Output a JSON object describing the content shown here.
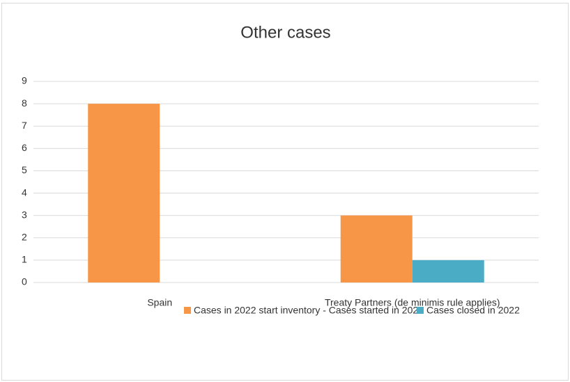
{
  "chart_data": {
    "type": "bar",
    "title": "Other cases",
    "categories": [
      "Spain",
      "Treaty Partners (de minimis rule applies)"
    ],
    "series": [
      {
        "name": "Cases in 2022 start inventory - Cases started in 2022",
        "color": "#f79646",
        "values": [
          8,
          3
        ]
      },
      {
        "name": "Cases closed in 2022",
        "color": "#4bacc6",
        "values": [
          0,
          1
        ]
      }
    ],
    "ylim": [
      0,
      9
    ],
    "yticks": [
      0,
      1,
      2,
      3,
      4,
      5,
      6,
      7,
      8,
      9
    ],
    "grid": true,
    "legend": "bottom"
  }
}
